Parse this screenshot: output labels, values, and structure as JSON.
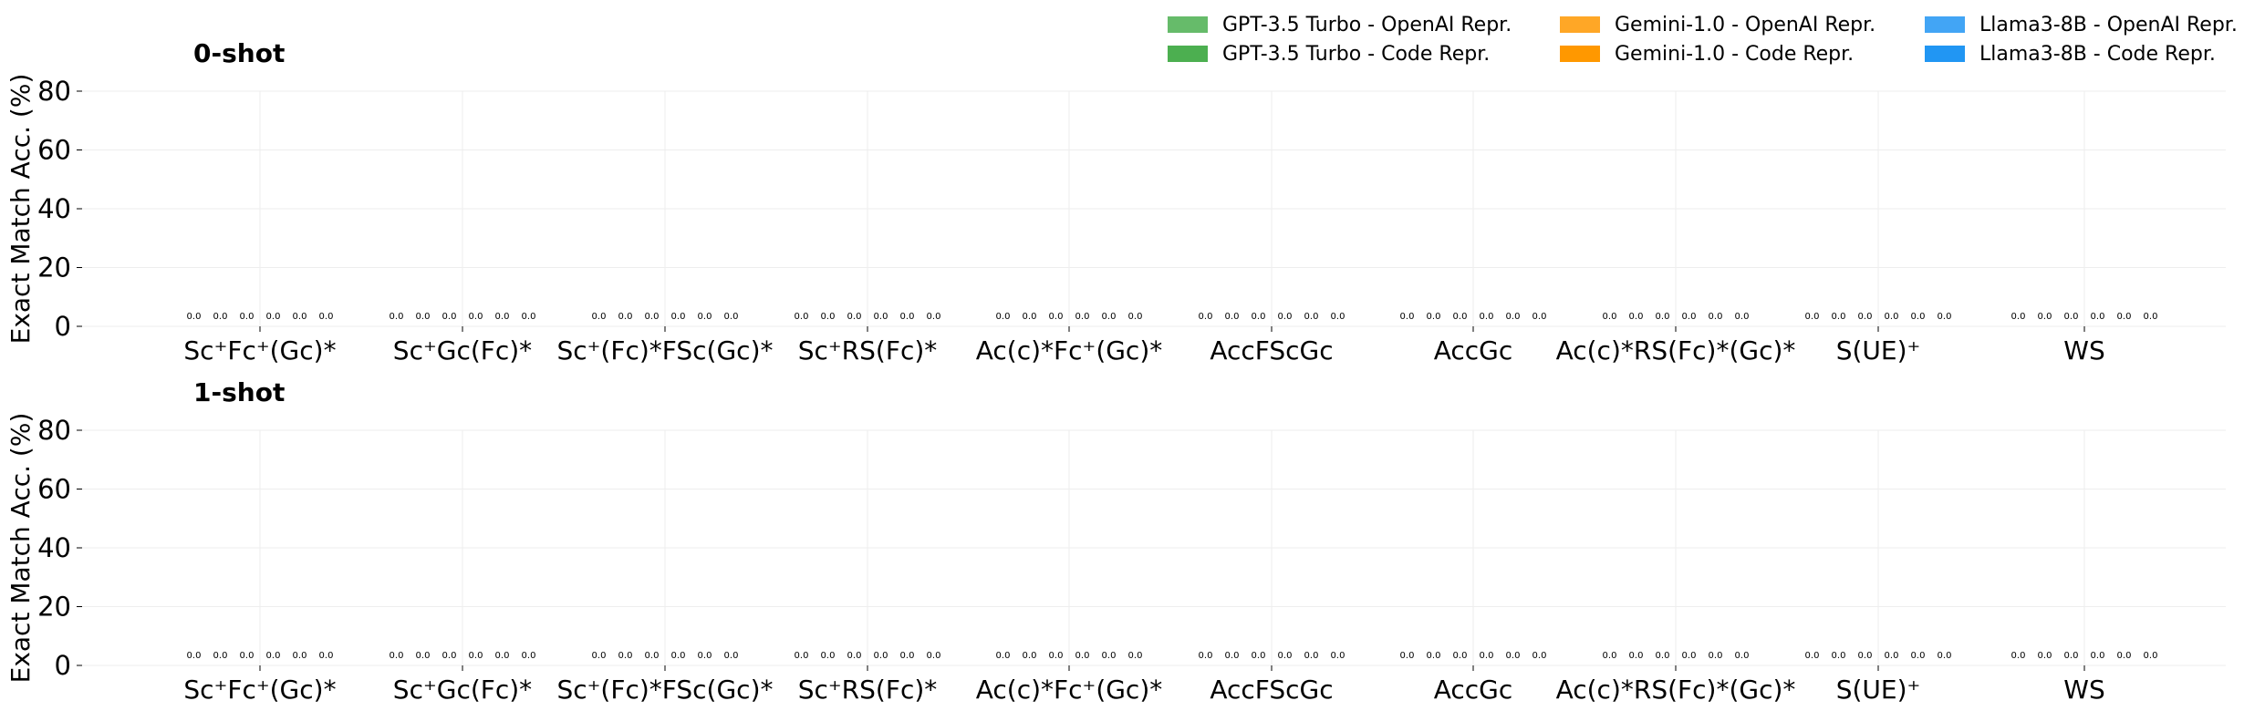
{
  "chart_data": [
    {
      "type": "bar",
      "title": "0-shot",
      "ylabel": "Exact Match Acc. (%)",
      "xlabel": "",
      "ylim": [
        0,
        80
      ],
      "yticks": [
        0,
        20,
        40,
        60,
        80
      ],
      "grid": true,
      "legend": "top-right",
      "categories": [
        "Sc⁺Fc⁺(Gc)*",
        "Sc⁺Gc(Fc)*",
        "Sc⁺(Fc)*FSc(Gc)*",
        "Sc⁺RS(Fc)*",
        "Ac(c)*Fc⁺(Gc)*",
        "AccFScGc",
        "AccGc",
        "Ac(c)*RS(Fc)*(Gc)*",
        "S(UE)⁺",
        "WS"
      ],
      "value_label_format": "0.0",
      "series": [
        {
          "name": "GPT-3.5 Turbo - OpenAI Repr.",
          "color": "#66bb6a",
          "values": [
            0,
            0,
            0,
            0,
            0,
            0,
            0,
            0,
            0,
            0
          ]
        },
        {
          "name": "GPT-3.5 Turbo - Code Repr.",
          "color": "#4caf50",
          "values": [
            0,
            0,
            0,
            0,
            0,
            0,
            0,
            0,
            0,
            0
          ]
        },
        {
          "name": "Gemini-1.0 - OpenAI Repr.",
          "color": "#ffa726",
          "values": [
            0,
            0,
            0,
            0,
            0,
            0,
            0,
            0,
            0,
            0
          ]
        },
        {
          "name": "Gemini-1.0 - Code Repr.",
          "color": "#ff9800",
          "values": [
            0,
            0,
            0,
            0,
            0,
            0,
            0,
            0,
            0,
            0
          ]
        },
        {
          "name": "Llama3-8B - OpenAI Repr.",
          "color": "#42a5f5",
          "values": [
            0,
            0,
            0,
            0,
            0,
            0,
            0,
            0,
            0,
            0
          ]
        },
        {
          "name": "Llama3-8B - Code Repr.",
          "color": "#2196f3",
          "values": [
            0,
            0,
            0,
            0,
            0,
            0,
            0,
            0,
            0,
            0
          ]
        }
      ]
    },
    {
      "type": "bar",
      "title": "1-shot",
      "ylabel": "Exact Match Acc. (%)",
      "xlabel": "",
      "ylim": [
        0,
        80
      ],
      "yticks": [
        0,
        20,
        40,
        60,
        80
      ],
      "grid": true,
      "categories": [
        "Sc⁺Fc⁺(Gc)*",
        "Sc⁺Gc(Fc)*",
        "Sc⁺(Fc)*FSc(Gc)*",
        "Sc⁺RS(Fc)*",
        "Ac(c)*Fc⁺(Gc)*",
        "AccFScGc",
        "AccGc",
        "Ac(c)*RS(Fc)*(Gc)*",
        "S(UE)⁺",
        "WS"
      ],
      "value_label_format": "0.0",
      "series": [
        {
          "name": "GPT-3.5 Turbo - OpenAI Repr.",
          "color": "#66bb6a",
          "values": [
            0,
            0,
            0,
            0,
            0,
            0,
            0,
            0,
            0,
            0
          ]
        },
        {
          "name": "GPT-3.5 Turbo - Code Repr.",
          "color": "#4caf50",
          "values": [
            0,
            0,
            0,
            0,
            0,
            0,
            0,
            0,
            0,
            0
          ]
        },
        {
          "name": "Gemini-1.0 - OpenAI Repr.",
          "color": "#ffa726",
          "values": [
            0,
            0,
            0,
            0,
            0,
            0,
            0,
            0,
            0,
            0
          ]
        },
        {
          "name": "Gemini-1.0 - Code Repr.",
          "color": "#ff9800",
          "values": [
            0,
            0,
            0,
            0,
            0,
            0,
            0,
            0,
            0,
            0
          ]
        },
        {
          "name": "Llama3-8B - OpenAI Repr.",
          "color": "#42a5f5",
          "values": [
            0,
            0,
            0,
            0,
            0,
            0,
            0,
            0,
            0,
            0
          ]
        },
        {
          "name": "Llama3-8B - Code Repr.",
          "color": "#2196f3",
          "values": [
            0,
            0,
            0,
            0,
            0,
            0,
            0,
            0,
            0,
            0
          ]
        }
      ]
    }
  ]
}
